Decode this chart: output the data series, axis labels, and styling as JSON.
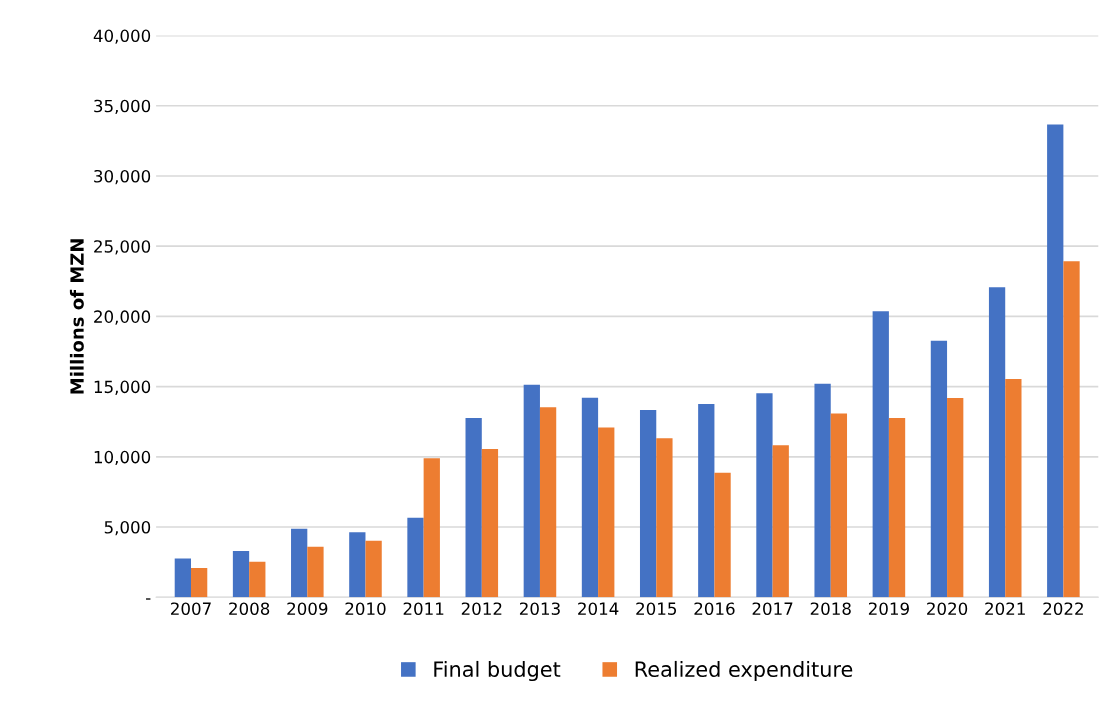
{
  "chart_data": {
    "type": "bar",
    "ylabel": "Millions of MZN",
    "categories": [
      "2007",
      "2008",
      "2009",
      "2010",
      "2011",
      "2012",
      "2013",
      "2014",
      "2015",
      "2016",
      "2017",
      "2018",
      "2019",
      "2020",
      "2021",
      "2022"
    ],
    "series": [
      {
        "name": "Final budget",
        "color": "#4472c4",
        "values": [
          2760,
          3290,
          4870,
          4630,
          5660,
          12760,
          15130,
          14210,
          13340,
          13760,
          14530,
          15210,
          20370,
          18260,
          22080,
          33660
        ]
      },
      {
        "name": "Realized expenditure",
        "color": "#ed7d31",
        "values": [
          2080,
          2530,
          3600,
          4030,
          9890,
          10550,
          13530,
          12080,
          11320,
          8870,
          10820,
          13080,
          12760,
          14180,
          15550,
          23920
        ]
      }
    ],
    "ylim": [
      0,
      40000
    ],
    "yticks": [
      {
        "value": 0,
        "label": "-"
      },
      {
        "value": 5000,
        "label": "5,000"
      },
      {
        "value": 10000,
        "label": "10,000"
      },
      {
        "value": 15000,
        "label": "15,000"
      },
      {
        "value": 20000,
        "label": "20,000"
      },
      {
        "value": 25000,
        "label": "25,000"
      },
      {
        "value": 30000,
        "label": "30,000"
      },
      {
        "value": 35000,
        "label": "35,000"
      },
      {
        "value": 40000,
        "label": "40,000"
      }
    ],
    "grid": "y",
    "legend": "bottom"
  }
}
